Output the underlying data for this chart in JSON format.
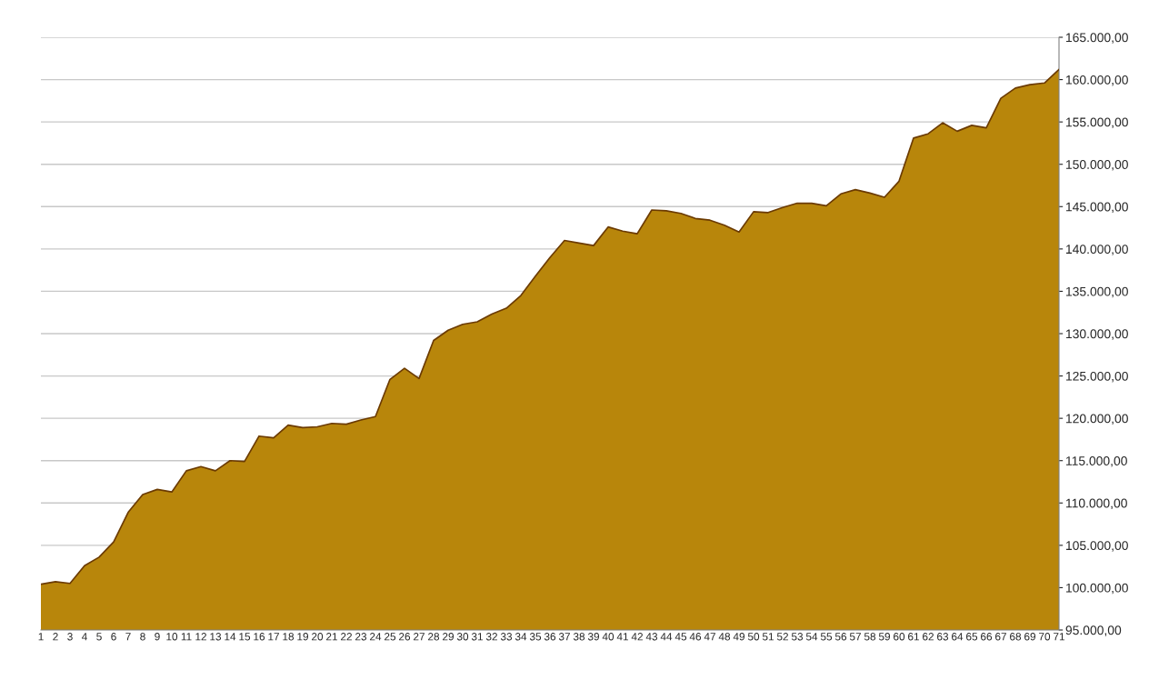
{
  "chart_data": {
    "type": "area",
    "categories": [
      "1",
      "2",
      "3",
      "4",
      "5",
      "6",
      "7",
      "8",
      "9",
      "10",
      "11",
      "12",
      "13",
      "14",
      "15",
      "16",
      "17",
      "18",
      "19",
      "20",
      "21",
      "22",
      "23",
      "24",
      "25",
      "26",
      "27",
      "28",
      "29",
      "30",
      "31",
      "32",
      "33",
      "34",
      "35",
      "36",
      "37",
      "38",
      "39",
      "40",
      "41",
      "42",
      "43",
      "44",
      "45",
      "46",
      "47",
      "48",
      "49",
      "50",
      "51",
      "52",
      "53",
      "54",
      "55",
      "56",
      "57",
      "58",
      "59",
      "60",
      "61",
      "62",
      "63",
      "64",
      "65",
      "66",
      "67",
      "68",
      "69",
      "70",
      "71"
    ],
    "series": [
      {
        "color": "#b8860b",
        "values": [
          100400,
          100700,
          100500,
          102600,
          103600,
          105400,
          108900,
          111000,
          111600,
          111300,
          113800,
          114300,
          113800,
          115000,
          114900,
          117900,
          117700,
          119200,
          118900,
          119000,
          119400,
          119300,
          119800,
          120200,
          124600,
          125900,
          124700,
          129200,
          130400,
          131100,
          131400,
          132300,
          133000,
          134500,
          136800,
          139000,
          141000,
          140700,
          140400,
          142600,
          142100,
          141800,
          144600,
          144500,
          144200,
          143600,
          143400,
          142800,
          142000,
          144400,
          144300,
          144900,
          145400,
          145400,
          145100,
          146500,
          147000,
          146600,
          146100,
          148000,
          153100,
          153600,
          154900,
          153900,
          154600,
          154300,
          157800,
          159000,
          159400,
          159600,
          161200
        ]
      }
    ],
    "ylim": [
      95000,
      165000
    ],
    "yticks": [
      {
        "value": 95000,
        "label": "95.000,00"
      },
      {
        "value": 100000,
        "label": "100.000,00"
      },
      {
        "value": 105000,
        "label": "105.000,00"
      },
      {
        "value": 110000,
        "label": "110.000,00"
      },
      {
        "value": 115000,
        "label": "115.000,00"
      },
      {
        "value": 120000,
        "label": "120.000,00"
      },
      {
        "value": 125000,
        "label": "125.000,00"
      },
      {
        "value": 130000,
        "label": "130.000,00"
      },
      {
        "value": 135000,
        "label": "135.000,00"
      },
      {
        "value": 140000,
        "label": "140.000,00"
      },
      {
        "value": 145000,
        "label": "145.000,00"
      },
      {
        "value": 150000,
        "label": "150.000,00"
      },
      {
        "value": 155000,
        "label": "155.000,00"
      },
      {
        "value": 160000,
        "label": "160.000,00"
      },
      {
        "value": 165000,
        "label": "165.000,00"
      }
    ],
    "grid": "y",
    "legend": false
  }
}
